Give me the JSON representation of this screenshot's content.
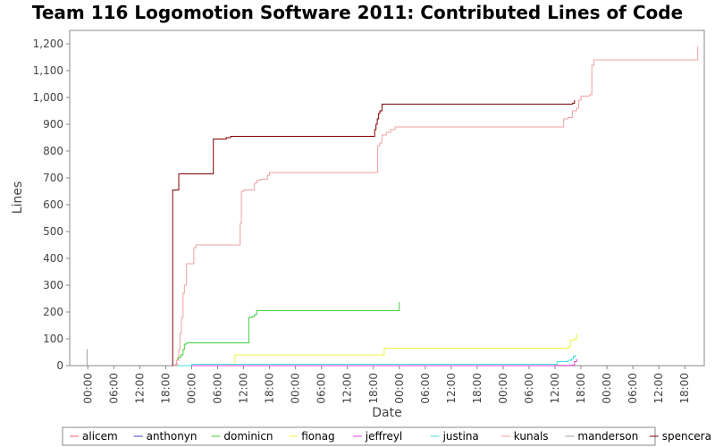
{
  "chart_data": {
    "type": "line",
    "title": "Team 116 Logomotion Software 2011: Contributed Lines of Code",
    "xlabel": "Date",
    "ylabel": "Lines",
    "ylim": [
      0,
      1250
    ],
    "y_ticks": [
      0,
      100,
      200,
      300,
      400,
      500,
      600,
      700,
      800,
      900,
      1000,
      1100,
      1200
    ],
    "y_tick_labels": [
      "0",
      "100",
      "200",
      "300",
      "400",
      "500",
      "600",
      "700",
      "800",
      "900",
      "1,000",
      "1,100",
      "1,200"
    ],
    "x_range_hours": [
      -4.2,
      142.5
    ],
    "x_ticks": [
      0,
      6,
      12,
      18,
      24,
      30,
      36,
      42,
      48,
      54,
      60,
      66,
      72,
      78,
      84,
      90,
      96,
      102,
      108,
      114,
      120,
      126,
      132,
      138
    ],
    "x_tick_labels": [
      "00:00",
      "06:00",
      "12:00",
      "18:00",
      "00:00",
      "06:00",
      "12:00",
      "18:00",
      "00:00",
      "06:00",
      "12:00",
      "18:00",
      "00:00",
      "06:00",
      "12:00",
      "18:00",
      "00:00",
      "06:00",
      "12:00",
      "18:00",
      "00:00",
      "06:00",
      "12:00",
      "18:00"
    ],
    "grid": false,
    "legend_position": "bottom",
    "series": [
      {
        "name": "alicem",
        "color": "#f06060",
        "x": [
          20.0,
          20.3,
          20.6
        ],
        "y": [
          0,
          5,
          10
        ]
      },
      {
        "name": "anthonyn",
        "color": "#4040c0",
        "x": [
          20.5,
          21.0
        ],
        "y": [
          0,
          2
        ]
      },
      {
        "name": "dominicn",
        "color": "#40d040",
        "x": [
          20.0,
          20.5,
          20.8,
          21.5,
          22.0,
          22.3,
          22.8,
          37.0,
          37.2,
          38.0,
          38.5,
          39.0,
          70.0,
          72.0,
          72.0
        ],
        "y": [
          0,
          20,
          30,
          40,
          60,
          80,
          85,
          85,
          180,
          183,
          190,
          205,
          205,
          205,
          237
        ]
      },
      {
        "name": "fionag",
        "color": "#f0f040",
        "x": [
          20.0,
          33.0,
          33.5,
          34.0,
          68.0,
          68.5,
          110.0,
          111.0,
          111.5,
          112.5,
          113.0
        ],
        "y": [
          0,
          2,
          5,
          40,
          40,
          65,
          65,
          70,
          95,
          100,
          120
        ]
      },
      {
        "name": "jeffreyl",
        "color": "#e040e0",
        "x": [
          20.0,
          108.0,
          112.0,
          112.5,
          113.0
        ],
        "y": [
          0,
          1,
          2,
          15,
          25
        ]
      },
      {
        "name": "justina",
        "color": "#40e0e0",
        "x": [
          20.0,
          24.0,
          108.0,
          108.5,
          111.0,
          111.8,
          112.2,
          112.7
        ],
        "y": [
          0,
          5,
          5,
          15,
          20,
          25,
          35,
          40
        ]
      },
      {
        "name": "kunals",
        "color": "#f0a0a0",
        "x": [
          20.0,
          20.5,
          21.0,
          21.3,
          21.6,
          22.0,
          22.3,
          22.8,
          23.5,
          24.5,
          25.0,
          26.0,
          35.0,
          35.2,
          35.5,
          36.0,
          37.0,
          38.0,
          38.5,
          39.0,
          39.5,
          40.0,
          41.5,
          42.0,
          66.5,
          67.0,
          67.5,
          68.0,
          69.0,
          70.0,
          71.0,
          109.0,
          110.0,
          111.0,
          112.0,
          113.0,
          113.5,
          114.0,
          114.5,
          116.0,
          116.5,
          117.0,
          141.0,
          141.0
        ],
        "y": [
          0,
          20,
          60,
          120,
          180,
          270,
          300,
          380,
          380,
          440,
          450,
          450,
          450,
          530,
          650,
          655,
          655,
          655,
          680,
          690,
          692,
          695,
          710,
          720,
          720,
          820,
          830,
          860,
          870,
          880,
          890,
          890,
          920,
          925,
          950,
          960,
          990,
          1005,
          1005,
          1010,
          1120,
          1140,
          1140,
          1190
        ]
      },
      {
        "name": "manderson",
        "color": "#a0a0a0",
        "x": [
          -0.2,
          -0.2
        ],
        "y": [
          0,
          62
        ]
      },
      {
        "name": "spencera",
        "color": "#800000",
        "x": [
          19.5,
          19.6,
          20.7,
          21.0,
          22.0,
          28.0,
          29.0,
          31.0,
          32.0,
          33.0,
          66.0,
          66.3,
          66.6,
          66.9,
          67.2,
          67.5,
          68.0,
          111.0,
          112.0,
          112.5
        ],
        "y": [
          0,
          655,
          655,
          715,
          715,
          715,
          845,
          845,
          850,
          855,
          855,
          880,
          900,
          920,
          940,
          950,
          975,
          975,
          978,
          990
        ]
      }
    ]
  }
}
